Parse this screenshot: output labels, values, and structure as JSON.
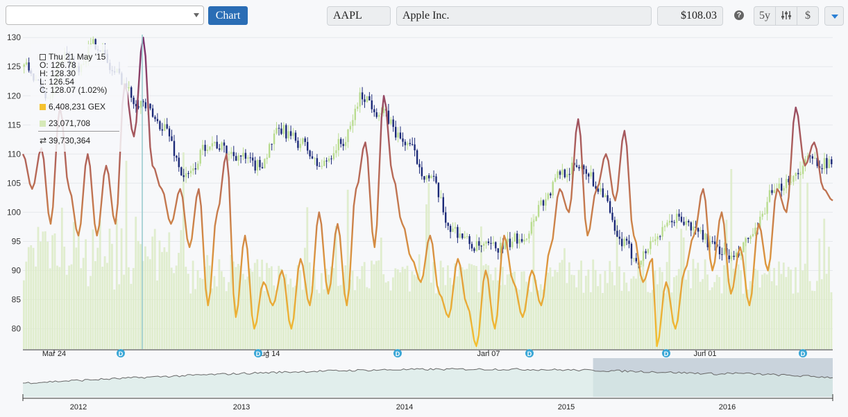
{
  "toolbar": {
    "symbol_select_value": "",
    "chart_button": "Chart",
    "ticker": "AAPL",
    "company": "Apple Inc.",
    "price": "$108.03",
    "help_icon": "?",
    "range_label": "5y",
    "settings_icon": "sliders-icon",
    "currency_label": "$",
    "dropdown_icon": "caret-down-icon"
  },
  "tooltip": {
    "date": "Thu 21 May '15",
    "open": "O: 126.78",
    "high": "H: 128.30",
    "low": "L: 126.54",
    "close": "C: 128.07 (1.02%)",
    "gex": "6,408,231 GEX",
    "volume": "23,071,708",
    "exchange": "39,730,364",
    "gex_color": "#f5c230",
    "volume_color": "#d6e9b8"
  },
  "chart_data": {
    "type": "candlestick",
    "ticker": "AAPL",
    "yaxis": {
      "ticks": [
        80,
        85,
        90,
        95,
        100,
        105,
        110,
        115,
        120,
        125,
        130
      ],
      "ylim": [
        76.5,
        130.5
      ]
    },
    "xaxis": {
      "labels": [
        "Mar 24",
        "Aug 14",
        "Jan 07",
        "Jun 01"
      ]
    },
    "dividend_markers": [
      "D",
      "D",
      "D",
      "D",
      "D",
      "D"
    ],
    "price_anchors": [
      [
        0,
        125
      ],
      [
        10,
        120
      ],
      [
        16,
        127
      ],
      [
        22,
        125
      ],
      [
        30,
        129
      ],
      [
        38,
        124
      ],
      [
        48,
        119
      ],
      [
        58,
        115
      ],
      [
        68,
        106
      ],
      [
        78,
        112
      ],
      [
        88,
        110
      ],
      [
        98,
        108
      ],
      [
        108,
        114
      ],
      [
        116,
        112
      ],
      [
        124,
        108
      ],
      [
        134,
        112
      ],
      [
        142,
        120
      ],
      [
        150,
        117
      ],
      [
        160,
        112
      ],
      [
        170,
        106
      ],
      [
        180,
        97
      ],
      [
        190,
        94
      ],
      [
        200,
        94
      ],
      [
        210,
        96
      ],
      [
        218,
        102
      ],
      [
        226,
        107
      ],
      [
        234,
        108
      ],
      [
        242,
        104
      ],
      [
        250,
        95
      ],
      [
        258,
        92
      ],
      [
        266,
        96
      ],
      [
        274,
        99
      ],
      [
        282,
        97
      ],
      [
        290,
        94
      ],
      [
        298,
        92
      ],
      [
        306,
        96
      ],
      [
        314,
        103
      ],
      [
        322,
        106
      ],
      [
        330,
        109
      ],
      [
        340,
        108
      ]
    ],
    "oscillator_anchors": [
      [
        0,
        110
      ],
      [
        4,
        104
      ],
      [
        8,
        111
      ],
      [
        12,
        98
      ],
      [
        16,
        118
      ],
      [
        20,
        104
      ],
      [
        24,
        96
      ],
      [
        28,
        110
      ],
      [
        32,
        96
      ],
      [
        36,
        108
      ],
      [
        40,
        98
      ],
      [
        44,
        122
      ],
      [
        48,
        113
      ],
      [
        52,
        130
      ],
      [
        56,
        108
      ],
      [
        60,
        104
      ],
      [
        64,
        98
      ],
      [
        68,
        104
      ],
      [
        72,
        94
      ],
      [
        76,
        104
      ],
      [
        80,
        84
      ],
      [
        84,
        100
      ],
      [
        88,
        110
      ],
      [
        92,
        82
      ],
      [
        96,
        96
      ],
      [
        100,
        80
      ],
      [
        104,
        88
      ],
      [
        108,
        84
      ],
      [
        112,
        90
      ],
      [
        116,
        80
      ],
      [
        120,
        92
      ],
      [
        124,
        84
      ],
      [
        128,
        100
      ],
      [
        132,
        86
      ],
      [
        136,
        98
      ],
      [
        140,
        84
      ],
      [
        144,
        104
      ],
      [
        148,
        112
      ],
      [
        152,
        94
      ],
      [
        156,
        120
      ],
      [
        160,
        106
      ],
      [
        164,
        98
      ],
      [
        168,
        92
      ],
      [
        172,
        88
      ],
      [
        176,
        96
      ],
      [
        180,
        86
      ],
      [
        184,
        82
      ],
      [
        188,
        92
      ],
      [
        192,
        84
      ],
      [
        196,
        77
      ],
      [
        200,
        90
      ],
      [
        204,
        80
      ],
      [
        208,
        96
      ],
      [
        212,
        88
      ],
      [
        216,
        82
      ],
      [
        220,
        90
      ],
      [
        224,
        84
      ],
      [
        228,
        94
      ],
      [
        232,
        104
      ],
      [
        236,
        100
      ],
      [
        240,
        116
      ],
      [
        244,
        96
      ],
      [
        248,
        104
      ],
      [
        252,
        110
      ],
      [
        256,
        102
      ],
      [
        260,
        114
      ],
      [
        264,
        96
      ],
      [
        268,
        88
      ],
      [
        272,
        92
      ],
      [
        274,
        77
      ],
      [
        278,
        88
      ],
      [
        282,
        80
      ],
      [
        286,
        90
      ],
      [
        290,
        96
      ],
      [
        294,
        104
      ],
      [
        298,
        90
      ],
      [
        302,
        100
      ],
      [
        306,
        86
      ],
      [
        310,
        94
      ],
      [
        314,
        84
      ],
      [
        318,
        98
      ],
      [
        322,
        90
      ],
      [
        326,
        104
      ],
      [
        330,
        100
      ],
      [
        334,
        118
      ],
      [
        338,
        108
      ],
      [
        342,
        112
      ],
      [
        346,
        104
      ],
      [
        350,
        102
      ]
    ],
    "navigator": {
      "labels": [
        "2012",
        "2013",
        "2014",
        "2015",
        "2016"
      ],
      "selected_range": [
        0.704,
        1.0
      ]
    }
  }
}
